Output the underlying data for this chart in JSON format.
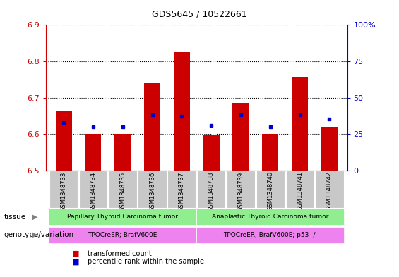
{
  "title": "GDS5645 / 10522661",
  "samples": [
    "GSM1348733",
    "GSM1348734",
    "GSM1348735",
    "GSM1348736",
    "GSM1348737",
    "GSM1348738",
    "GSM1348739",
    "GSM1348740",
    "GSM1348741",
    "GSM1348742"
  ],
  "transformed_count": [
    6.665,
    6.6,
    6.6,
    6.74,
    6.825,
    6.597,
    6.686,
    6.6,
    6.757,
    6.62
  ],
  "percentile_rank": [
    33,
    30,
    30,
    38,
    37,
    31,
    38,
    30,
    38,
    35
  ],
  "ylim_left": [
    6.5,
    6.9
  ],
  "ylim_right": [
    0,
    100
  ],
  "yticks_left": [
    6.5,
    6.6,
    6.7,
    6.8,
    6.9
  ],
  "yticks_right": [
    0,
    25,
    50,
    75,
    100
  ],
  "ytick_right_labels": [
    "0",
    "25",
    "50",
    "75",
    "100%"
  ],
  "bar_color": "#cc0000",
  "dot_color": "#0000cc",
  "bar_bottom": 6.5,
  "group1_label": "Papillary Thyroid Carcinoma tumor",
  "group2_label": "Anaplastic Thyroid Carcinoma tumor",
  "group1_genotype": "TPOCreER; BrafV600E",
  "group2_genotype": "TPOCreER; BrafV600E; p53 -/-",
  "group1_indices": [
    0,
    1,
    2,
    3,
    4
  ],
  "group2_indices": [
    5,
    6,
    7,
    8,
    9
  ],
  "tissue_label": "tissue",
  "genotype_label": "genotype/variation",
  "legend1": "transformed count",
  "legend2": "percentile rank within the sample",
  "tissue_color": "#90ee90",
  "genotype_color": "#ee82ee",
  "xticklabel_bg": "#c8c8c8",
  "left_axis_color": "#cc0000",
  "right_axis_color": "#0000cc",
  "title_fontsize": 9,
  "axis_fontsize": 8,
  "label_fontsize": 7,
  "bar_width": 0.55
}
